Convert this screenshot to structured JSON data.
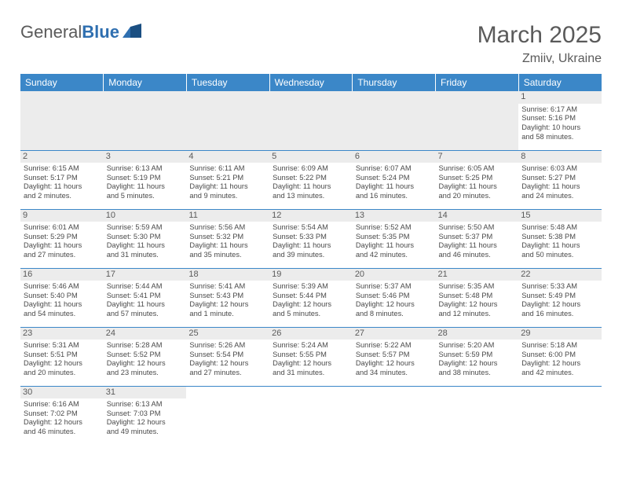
{
  "brand": {
    "part1": "General",
    "part2": "Blue"
  },
  "title": "March 2025",
  "location": "Zmiiv, Ukraine",
  "colors": {
    "header_bg": "#3b87c8",
    "header_text": "#ffffff",
    "grid_border": "#3b87c8",
    "daynum_bg": "#ececec",
    "body_text": "#4a4a4a",
    "title_text": "#5a5a5a"
  },
  "weekdays": [
    "Sunday",
    "Monday",
    "Tuesday",
    "Wednesday",
    "Thursday",
    "Friday",
    "Saturday"
  ],
  "weeks": [
    [
      null,
      null,
      null,
      null,
      null,
      null,
      {
        "n": "1",
        "sr": "Sunrise: 6:17 AM",
        "ss": "Sunset: 5:16 PM",
        "d1": "Daylight: 10 hours",
        "d2": "and 58 minutes."
      }
    ],
    [
      {
        "n": "2",
        "sr": "Sunrise: 6:15 AM",
        "ss": "Sunset: 5:17 PM",
        "d1": "Daylight: 11 hours",
        "d2": "and 2 minutes."
      },
      {
        "n": "3",
        "sr": "Sunrise: 6:13 AM",
        "ss": "Sunset: 5:19 PM",
        "d1": "Daylight: 11 hours",
        "d2": "and 5 minutes."
      },
      {
        "n": "4",
        "sr": "Sunrise: 6:11 AM",
        "ss": "Sunset: 5:21 PM",
        "d1": "Daylight: 11 hours",
        "d2": "and 9 minutes."
      },
      {
        "n": "5",
        "sr": "Sunrise: 6:09 AM",
        "ss": "Sunset: 5:22 PM",
        "d1": "Daylight: 11 hours",
        "d2": "and 13 minutes."
      },
      {
        "n": "6",
        "sr": "Sunrise: 6:07 AM",
        "ss": "Sunset: 5:24 PM",
        "d1": "Daylight: 11 hours",
        "d2": "and 16 minutes."
      },
      {
        "n": "7",
        "sr": "Sunrise: 6:05 AM",
        "ss": "Sunset: 5:25 PM",
        "d1": "Daylight: 11 hours",
        "d2": "and 20 minutes."
      },
      {
        "n": "8",
        "sr": "Sunrise: 6:03 AM",
        "ss": "Sunset: 5:27 PM",
        "d1": "Daylight: 11 hours",
        "d2": "and 24 minutes."
      }
    ],
    [
      {
        "n": "9",
        "sr": "Sunrise: 6:01 AM",
        "ss": "Sunset: 5:29 PM",
        "d1": "Daylight: 11 hours",
        "d2": "and 27 minutes."
      },
      {
        "n": "10",
        "sr": "Sunrise: 5:59 AM",
        "ss": "Sunset: 5:30 PM",
        "d1": "Daylight: 11 hours",
        "d2": "and 31 minutes."
      },
      {
        "n": "11",
        "sr": "Sunrise: 5:56 AM",
        "ss": "Sunset: 5:32 PM",
        "d1": "Daylight: 11 hours",
        "d2": "and 35 minutes."
      },
      {
        "n": "12",
        "sr": "Sunrise: 5:54 AM",
        "ss": "Sunset: 5:33 PM",
        "d1": "Daylight: 11 hours",
        "d2": "and 39 minutes."
      },
      {
        "n": "13",
        "sr": "Sunrise: 5:52 AM",
        "ss": "Sunset: 5:35 PM",
        "d1": "Daylight: 11 hours",
        "d2": "and 42 minutes."
      },
      {
        "n": "14",
        "sr": "Sunrise: 5:50 AM",
        "ss": "Sunset: 5:37 PM",
        "d1": "Daylight: 11 hours",
        "d2": "and 46 minutes."
      },
      {
        "n": "15",
        "sr": "Sunrise: 5:48 AM",
        "ss": "Sunset: 5:38 PM",
        "d1": "Daylight: 11 hours",
        "d2": "and 50 minutes."
      }
    ],
    [
      {
        "n": "16",
        "sr": "Sunrise: 5:46 AM",
        "ss": "Sunset: 5:40 PM",
        "d1": "Daylight: 11 hours",
        "d2": "and 54 minutes."
      },
      {
        "n": "17",
        "sr": "Sunrise: 5:44 AM",
        "ss": "Sunset: 5:41 PM",
        "d1": "Daylight: 11 hours",
        "d2": "and 57 minutes."
      },
      {
        "n": "18",
        "sr": "Sunrise: 5:41 AM",
        "ss": "Sunset: 5:43 PM",
        "d1": "Daylight: 12 hours",
        "d2": "and 1 minute."
      },
      {
        "n": "19",
        "sr": "Sunrise: 5:39 AM",
        "ss": "Sunset: 5:44 PM",
        "d1": "Daylight: 12 hours",
        "d2": "and 5 minutes."
      },
      {
        "n": "20",
        "sr": "Sunrise: 5:37 AM",
        "ss": "Sunset: 5:46 PM",
        "d1": "Daylight: 12 hours",
        "d2": "and 8 minutes."
      },
      {
        "n": "21",
        "sr": "Sunrise: 5:35 AM",
        "ss": "Sunset: 5:48 PM",
        "d1": "Daylight: 12 hours",
        "d2": "and 12 minutes."
      },
      {
        "n": "22",
        "sr": "Sunrise: 5:33 AM",
        "ss": "Sunset: 5:49 PM",
        "d1": "Daylight: 12 hours",
        "d2": "and 16 minutes."
      }
    ],
    [
      {
        "n": "23",
        "sr": "Sunrise: 5:31 AM",
        "ss": "Sunset: 5:51 PM",
        "d1": "Daylight: 12 hours",
        "d2": "and 20 minutes."
      },
      {
        "n": "24",
        "sr": "Sunrise: 5:28 AM",
        "ss": "Sunset: 5:52 PM",
        "d1": "Daylight: 12 hours",
        "d2": "and 23 minutes."
      },
      {
        "n": "25",
        "sr": "Sunrise: 5:26 AM",
        "ss": "Sunset: 5:54 PM",
        "d1": "Daylight: 12 hours",
        "d2": "and 27 minutes."
      },
      {
        "n": "26",
        "sr": "Sunrise: 5:24 AM",
        "ss": "Sunset: 5:55 PM",
        "d1": "Daylight: 12 hours",
        "d2": "and 31 minutes."
      },
      {
        "n": "27",
        "sr": "Sunrise: 5:22 AM",
        "ss": "Sunset: 5:57 PM",
        "d1": "Daylight: 12 hours",
        "d2": "and 34 minutes."
      },
      {
        "n": "28",
        "sr": "Sunrise: 5:20 AM",
        "ss": "Sunset: 5:59 PM",
        "d1": "Daylight: 12 hours",
        "d2": "and 38 minutes."
      },
      {
        "n": "29",
        "sr": "Sunrise: 5:18 AM",
        "ss": "Sunset: 6:00 PM",
        "d1": "Daylight: 12 hours",
        "d2": "and 42 minutes."
      }
    ],
    [
      {
        "n": "30",
        "sr": "Sunrise: 6:16 AM",
        "ss": "Sunset: 7:02 PM",
        "d1": "Daylight: 12 hours",
        "d2": "and 46 minutes."
      },
      {
        "n": "31",
        "sr": "Sunrise: 6:13 AM",
        "ss": "Sunset: 7:03 PM",
        "d1": "Daylight: 12 hours",
        "d2": "and 49 minutes."
      },
      null,
      null,
      null,
      null,
      null
    ]
  ]
}
